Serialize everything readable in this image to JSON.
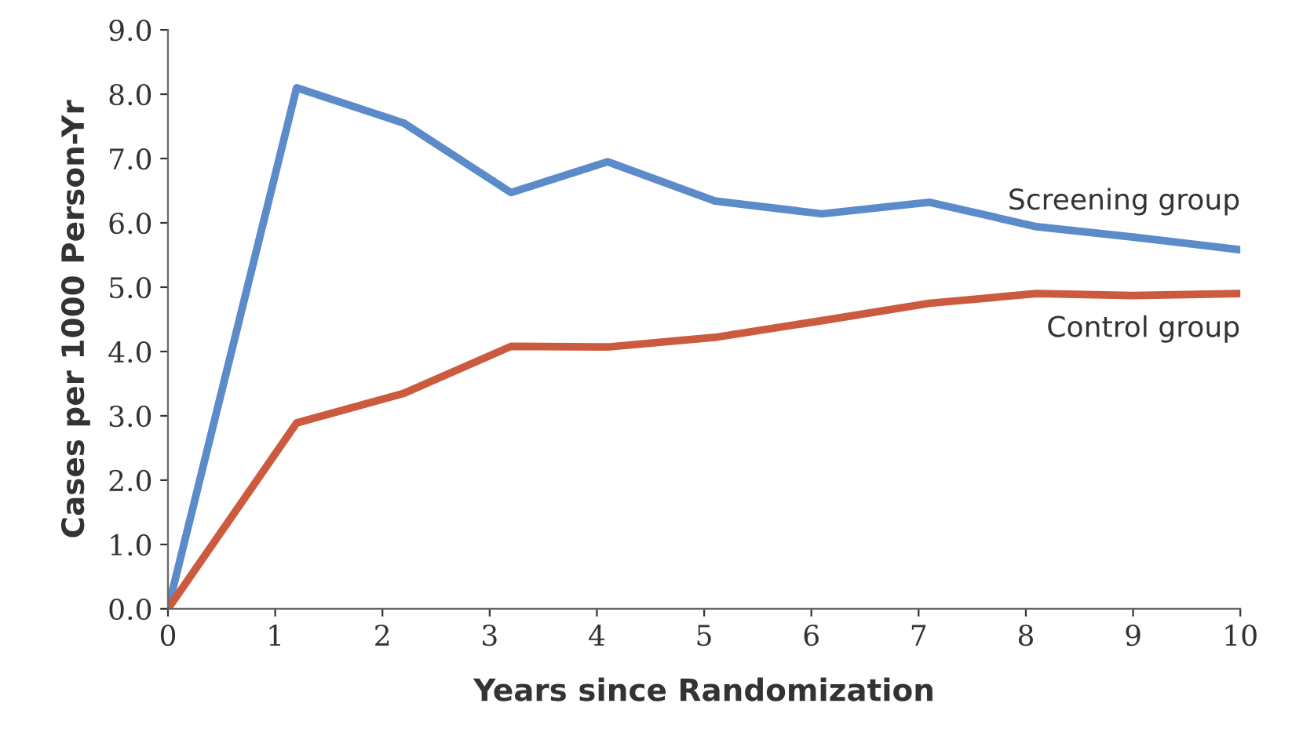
{
  "chart_data": {
    "type": "line",
    "xlabel": "Years since Randomization",
    "ylabel": "Cases per 1000 Person-Yr",
    "x": [
      0,
      1.2,
      2.2,
      3.2,
      4.1,
      5.1,
      6.1,
      7.1,
      8.1,
      9,
      10
    ],
    "series": [
      {
        "name": "Screening group",
        "color": "#5b8bc9",
        "values": [
          0,
          8.1,
          7.55,
          6.47,
          6.95,
          6.34,
          6.14,
          6.32,
          5.94,
          5.78,
          5.58
        ]
      },
      {
        "name": "Control group",
        "color": "#cc5a3f",
        "values": [
          0,
          2.89,
          3.35,
          4.08,
          4.07,
          4.22,
          4.48,
          4.75,
          4.9,
          4.87,
          4.9
        ]
      }
    ],
    "xlim": [
      0,
      10
    ],
    "xticks": [
      0,
      1,
      2,
      3,
      4,
      5,
      6,
      7,
      8,
      9,
      10
    ],
    "ylim": [
      0,
      9
    ],
    "yticks": [
      {
        "value": 0,
        "label": "0.0"
      },
      {
        "value": 1,
        "label": "1.0"
      },
      {
        "value": 2,
        "label": "2.0"
      },
      {
        "value": 3,
        "label": "3.0"
      },
      {
        "value": 4,
        "label": "4.0"
      },
      {
        "value": 5,
        "label": "5.0"
      },
      {
        "value": 6,
        "label": "6.0"
      },
      {
        "value": 7,
        "label": "7.0"
      },
      {
        "value": 8,
        "label": "8.0"
      },
      {
        "value": 9,
        "label": "9.0"
      }
    ],
    "grid": false,
    "legend": false,
    "marker": "none",
    "line_style": "solid"
  }
}
